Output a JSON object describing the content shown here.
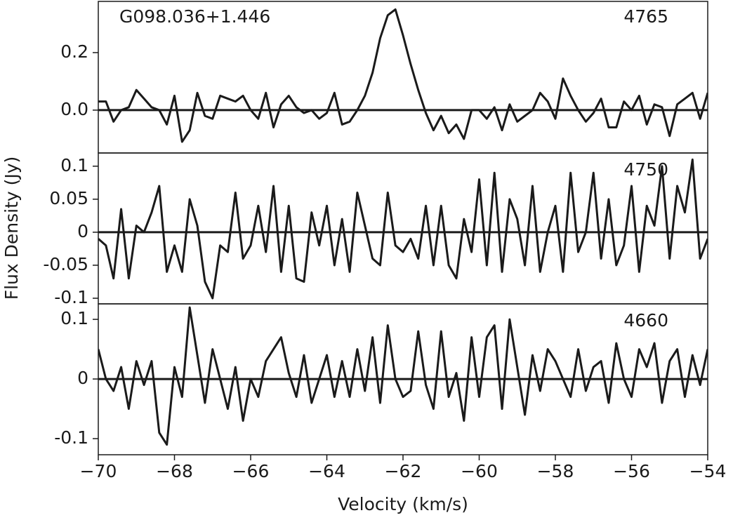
{
  "chart_data": {
    "type": "line",
    "title": "G098.036+1.446",
    "xlabel": "Velocity (km/s)",
    "ylabel": "Flux Density (Jy)",
    "xlim": [
      -70,
      -54
    ],
    "xticks": [
      {
        "value": -70,
        "label": "−70"
      },
      {
        "value": -68,
        "label": "−68"
      },
      {
        "value": -66,
        "label": "−66"
      },
      {
        "value": -64,
        "label": "−64"
      },
      {
        "value": -62,
        "label": "−62"
      },
      {
        "value": -60,
        "label": "−60"
      },
      {
        "value": -58,
        "label": "−58"
      },
      {
        "value": -56,
        "label": "−56"
      },
      {
        "value": -54,
        "label": "−54"
      }
    ],
    "color": "#1a1a1a",
    "x": [
      -70,
      -69.8,
      -69.6,
      -69.4,
      -69.2,
      -69,
      -68.8,
      -68.6,
      -68.4,
      -68.2,
      -68,
      -67.8,
      -67.6,
      -67.4,
      -67.2,
      -67,
      -66.8,
      -66.6,
      -66.4,
      -66.2,
      -66,
      -65.8,
      -65.6,
      -65.4,
      -65.2,
      -65,
      -64.8,
      -64.6,
      -64.4,
      -64.2,
      -64,
      -63.8,
      -63.6,
      -63.4,
      -63.2,
      -63,
      -62.8,
      -62.6,
      -62.4,
      -62.2,
      -62,
      -61.8,
      -61.6,
      -61.4,
      -61.2,
      -61,
      -60.8,
      -60.6,
      -60.4,
      -60.2,
      -60,
      -59.8,
      -59.6,
      -59.4,
      -59.2,
      -59,
      -58.8,
      -58.6,
      -58.4,
      -58.2,
      -58,
      -57.8,
      -57.6,
      -57.4,
      -57.2,
      -57,
      -56.8,
      -56.6,
      -56.4,
      -56.2,
      -56,
      -55.8,
      -55.6,
      -55.4,
      -55.2,
      -55,
      -54.8,
      -54.6,
      -54.4,
      -54.2,
      -54
    ],
    "panels": [
      {
        "label": "4765",
        "ylim": [
          -0.149,
          0.378
        ],
        "yticks": [
          {
            "value": 0,
            "label": "0.0"
          },
          0.2
        ],
        "values": [
          0.03,
          0.03,
          -0.04,
          0.0,
          0.01,
          0.07,
          0.04,
          0.01,
          0.0,
          -0.05,
          0.05,
          -0.11,
          -0.07,
          0.06,
          -0.02,
          -0.03,
          0.05,
          0.04,
          0.03,
          0.05,
          0.0,
          -0.03,
          0.06,
          -0.06,
          0.02,
          0.05,
          0.01,
          -0.01,
          0.0,
          -0.03,
          -0.01,
          0.06,
          -0.05,
          -0.04,
          0.0,
          0.05,
          0.13,
          0.25,
          0.33,
          0.35,
          0.26,
          0.16,
          0.07,
          -0.01,
          -0.07,
          -0.02,
          -0.08,
          -0.05,
          -0.1,
          0.0,
          0.0,
          -0.03,
          0.01,
          -0.07,
          0.02,
          -0.04,
          -0.02,
          0.0,
          0.06,
          0.03,
          -0.03,
          0.11,
          0.05,
          0.0,
          -0.04,
          -0.01,
          0.04,
          -0.06,
          -0.06,
          0.03,
          0.0,
          0.05,
          -0.05,
          0.02,
          0.01,
          -0.09,
          0.02,
          0.04,
          0.06,
          -0.03,
          0.06
        ]
      },
      {
        "label": "4750",
        "ylim": [
          -0.1085,
          0.12
        ],
        "yticks": [
          -0.1,
          -0.05,
          0,
          0.05,
          0.1
        ],
        "values": [
          -0.01,
          -0.02,
          -0.07,
          0.035,
          -0.07,
          0.01,
          0.0,
          0.03,
          0.07,
          -0.06,
          -0.02,
          -0.06,
          0.05,
          0.01,
          -0.075,
          -0.1,
          -0.02,
          -0.03,
          0.06,
          -0.04,
          -0.02,
          0.04,
          -0.03,
          0.07,
          -0.06,
          0.04,
          -0.07,
          -0.075,
          0.03,
          -0.02,
          0.04,
          -0.05,
          0.02,
          -0.06,
          0.06,
          0.01,
          -0.04,
          -0.05,
          0.06,
          -0.02,
          -0.03,
          -0.01,
          -0.04,
          0.04,
          -0.05,
          0.04,
          -0.05,
          -0.07,
          0.02,
          -0.03,
          0.08,
          -0.05,
          0.09,
          -0.06,
          0.05,
          0.02,
          -0.05,
          0.07,
          -0.06,
          0.0,
          0.04,
          -0.06,
          0.09,
          -0.03,
          0.0,
          0.09,
          -0.04,
          0.05,
          -0.05,
          -0.02,
          0.07,
          -0.06,
          0.04,
          0.01,
          0.1,
          -0.04,
          0.07,
          0.03,
          0.11,
          -0.04,
          -0.01
        ]
      },
      {
        "label": "4660",
        "ylim": [
          -0.127,
          0.126
        ],
        "yticks": [
          -0.1,
          0,
          0.1
        ],
        "values": [
          0.05,
          0.0,
          -0.02,
          0.02,
          -0.05,
          0.03,
          -0.01,
          0.03,
          -0.09,
          -0.11,
          0.02,
          -0.03,
          0.12,
          0.04,
          -0.04,
          0.05,
          0.0,
          -0.05,
          0.02,
          -0.07,
          0.0,
          -0.03,
          0.03,
          0.05,
          0.07,
          0.01,
          -0.03,
          0.04,
          -0.04,
          0.0,
          0.04,
          -0.03,
          0.03,
          -0.03,
          0.05,
          -0.02,
          0.07,
          -0.04,
          0.09,
          0.0,
          -0.03,
          -0.02,
          0.08,
          -0.01,
          -0.05,
          0.08,
          -0.03,
          0.01,
          -0.07,
          0.07,
          -0.03,
          0.07,
          0.09,
          -0.05,
          0.1,
          0.02,
          -0.06,
          0.04,
          -0.02,
          0.05,
          0.03,
          0.0,
          -0.03,
          0.05,
          -0.02,
          0.02,
          0.03,
          -0.04,
          0.06,
          0.0,
          -0.03,
          0.05,
          0.02,
          0.06,
          -0.04,
          0.03,
          0.05,
          -0.03,
          0.04,
          -0.01,
          0.05
        ]
      }
    ]
  }
}
